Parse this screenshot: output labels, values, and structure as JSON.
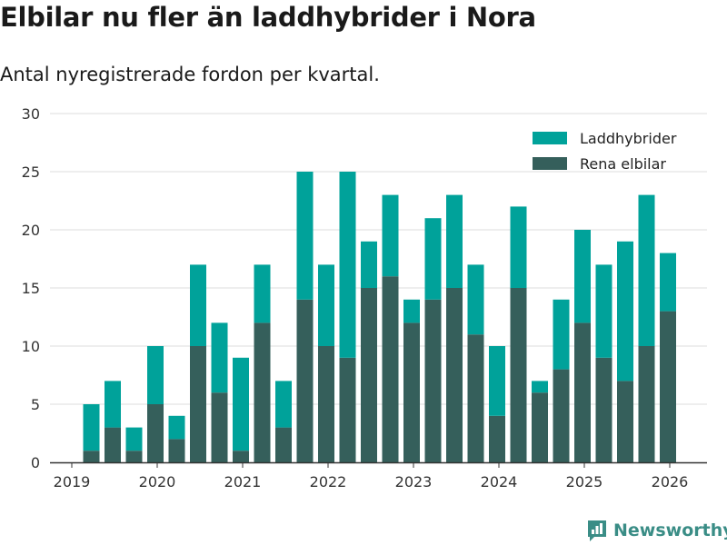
{
  "title": "Elbilar nu fler än laddhybrider i Nora",
  "subtitle": "Antal nyregistrerade fordon per kvartal.",
  "brand": {
    "name": "Newsworthy"
  },
  "colors": {
    "hybrid": "#00a29a",
    "electric": "#355f5b",
    "grid": "#dddddd",
    "axis": "#333333",
    "brand": "#3a8d86"
  },
  "chart_data": {
    "type": "bar",
    "stacked": true,
    "title": "Elbilar nu fler än laddhybrider i Nora",
    "subtitle": "Antal nyregistrerade fordon per kvartal.",
    "xlabel": "",
    "ylabel": "",
    "ylim": [
      0,
      30
    ],
    "yticks": [
      0,
      5,
      10,
      15,
      20,
      25,
      30
    ],
    "xticks": [
      "2019",
      "2020",
      "2021",
      "2022",
      "2023",
      "2024",
      "2025",
      "2026"
    ],
    "categories": [
      "2019 Q2",
      "2019 Q3",
      "2019 Q4",
      "2020 Q1",
      "2020 Q2",
      "2020 Q3",
      "2020 Q4",
      "2021 Q1",
      "2021 Q2",
      "2021 Q3",
      "2021 Q4",
      "2022 Q1",
      "2022 Q2",
      "2022 Q3",
      "2022 Q4",
      "2023 Q1",
      "2023 Q2",
      "2023 Q3",
      "2023 Q4",
      "2024 Q1",
      "2024 Q2",
      "2024 Q3",
      "2024 Q4",
      "2025 Q1",
      "2025 Q2",
      "2025 Q3",
      "2025 Q4",
      "2026 Q1"
    ],
    "series": [
      {
        "name": "Rena elbilar",
        "color": "#355f5b",
        "values": [
          1,
          3,
          1,
          5,
          2,
          10,
          6,
          1,
          12,
          3,
          14,
          10,
          9,
          15,
          16,
          12,
          14,
          15,
          11,
          4,
          15,
          6,
          8,
          12,
          9,
          7,
          10,
          13
        ]
      },
      {
        "name": "Laddhybrider",
        "color": "#00a29a",
        "values": [
          4,
          4,
          2,
          5,
          2,
          7,
          6,
          8,
          5,
          4,
          11,
          7,
          16,
          4,
          7,
          2,
          7,
          8,
          6,
          6,
          7,
          1,
          6,
          8,
          8,
          12,
          13,
          5
        ]
      }
    ],
    "legend": [
      "Laddhybrider",
      "Rena elbilar"
    ],
    "legend_position": "top-right",
    "grid": true
  }
}
